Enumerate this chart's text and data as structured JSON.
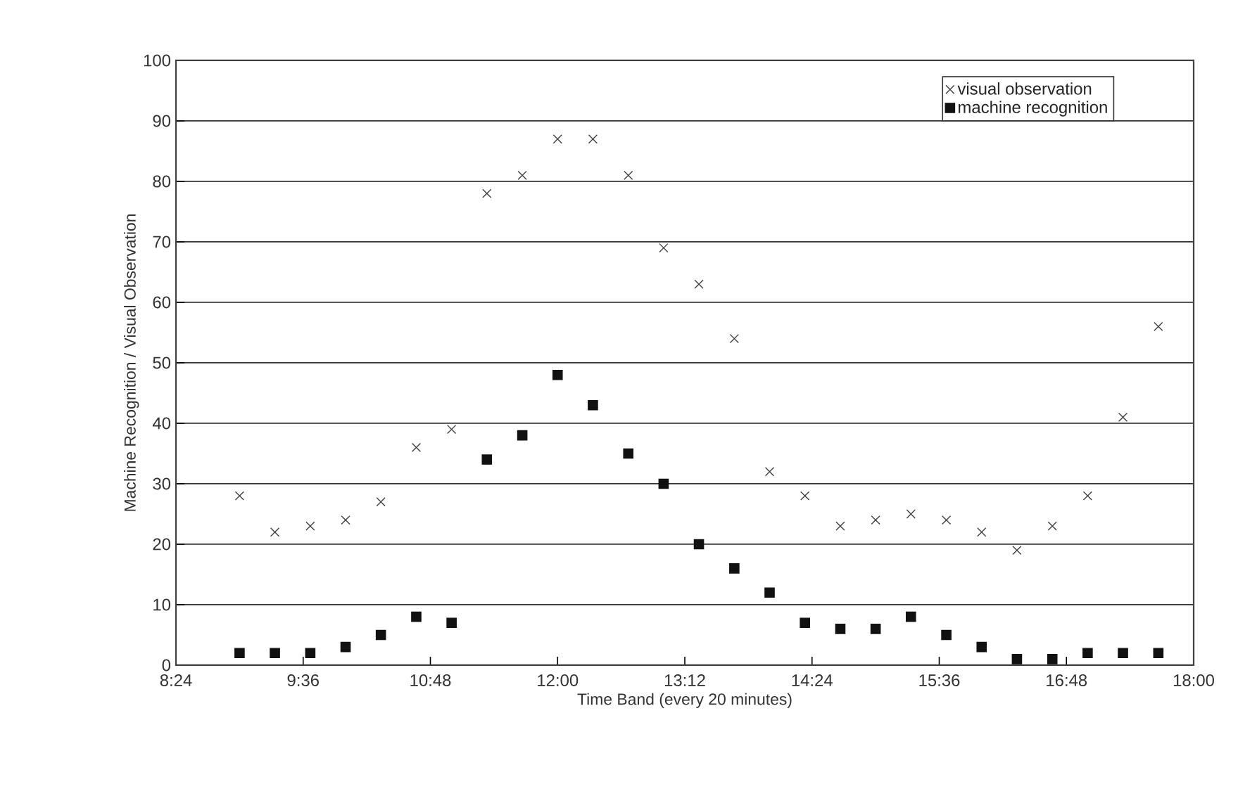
{
  "chart_data": {
    "type": "scatter",
    "xlabel": "Time Band (every 20 minutes)",
    "ylabel": "Machine Recognition / Visual Observation",
    "x": [
      9,
      9.333,
      9.667,
      10,
      10.333,
      10.667,
      11,
      11.333,
      11.667,
      12,
      12.333,
      12.667,
      13,
      13.333,
      13.667,
      14,
      14.333,
      14.667,
      15,
      15.333,
      15.667,
      16,
      16.333,
      16.667,
      17,
      17.333,
      17.667
    ],
    "series": [
      {
        "name": "visual observation",
        "color": "#404040",
        "marker": "cross",
        "values": [
          28,
          22,
          23,
          24,
          27,
          36,
          39,
          78,
          81,
          87,
          87,
          81,
          69,
          63,
          54,
          32,
          28,
          23,
          24,
          25,
          24,
          22,
          19,
          23,
          28,
          41,
          56
        ]
      },
      {
        "name": "machine recognition",
        "color": "#111111",
        "marker": "square",
        "values": [
          2,
          2,
          2,
          3,
          5,
          8,
          7,
          34,
          38,
          48,
          43,
          35,
          30,
          20,
          16,
          12,
          7,
          6,
          6,
          8,
          5,
          3,
          1,
          1,
          2,
          2,
          2
        ]
      }
    ],
    "xlim": [
      8.4,
      18
    ],
    "xticks": [
      {
        "value": 8.4,
        "label": "8:24"
      },
      {
        "value": 9.6,
        "label": "9:36"
      },
      {
        "value": 10.8,
        "label": "10:48"
      },
      {
        "value": 12,
        "label": "12:00"
      },
      {
        "value": 13.2,
        "label": "13:12"
      },
      {
        "value": 14.4,
        "label": "14:24"
      },
      {
        "value": 15.6,
        "label": "15:36"
      },
      {
        "value": 16.8,
        "label": "16:48"
      },
      {
        "value": 18,
        "label": "18:00"
      }
    ],
    "ylim": [
      0,
      100
    ],
    "yticks": [
      0,
      10,
      20,
      30,
      40,
      50,
      60,
      70,
      80,
      90,
      100
    ],
    "grid": "y",
    "legend": "top right"
  }
}
